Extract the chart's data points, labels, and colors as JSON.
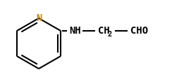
{
  "bg_color": "#ffffff",
  "bond_color": "#000000",
  "N_color": "#cc8800",
  "figsize": [
    2.71,
    1.17
  ],
  "dpi": 100,
  "bond_lw": 1.5,
  "N_label": "N",
  "nh_label": "NH",
  "ch2_label": "CH",
  "sub2_label": "2",
  "cho_label": "CHO",
  "font_size_main": 10,
  "font_size_sub": 7.5
}
